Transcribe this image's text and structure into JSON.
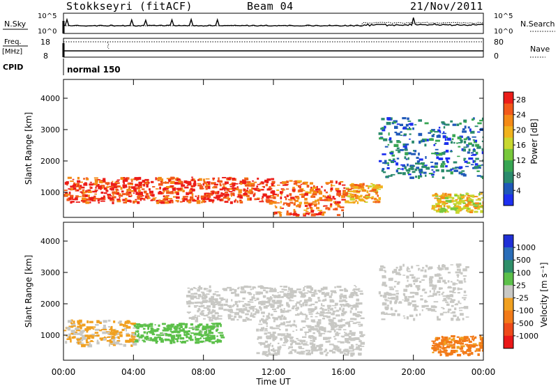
{
  "header": {
    "station": "Stokkseyri (fitACF)",
    "beam": "Beam 04",
    "date": "21/Nov/2011"
  },
  "panels": {
    "nsky_label": "N.Sky",
    "nsky_ticks": [
      "10^5",
      "10^0"
    ],
    "nsearch_label": "N.Search",
    "nsearch_ticks": [
      "10^5",
      "10^0"
    ],
    "freq_label": "Freq.",
    "freq_units": "[MHz]",
    "freq_ticks": [
      "18",
      "8"
    ],
    "nave_label": "Nave",
    "nave_ticks": [
      "80",
      "0"
    ],
    "cpid_label": "CPID",
    "cpid_value": "normal 150"
  },
  "chart_data": [
    {
      "type": "heatmap",
      "title": "",
      "xlabel": "",
      "ylabel": "Slant Range [km]",
      "ylim": [
        200,
        4600
      ],
      "yticks": [
        "1000",
        "2000",
        "3000",
        "4000"
      ],
      "xlim": [
        "00:00",
        "24:00"
      ],
      "colorbar": {
        "label": "Power [dB]",
        "ticks": [
          "4",
          "8",
          "12",
          "16",
          "20",
          "24",
          "28"
        ],
        "colors": [
          "#1d2ff0",
          "#1f58b8",
          "#2a8a6c",
          "#37a552",
          "#78c83b",
          "#c8d72f",
          "#f0b21d",
          "#f48a16",
          "#f2591a",
          "#ec1d19"
        ],
        "range": [
          0,
          30
        ]
      },
      "echo_bands": [
        {
          "t": [
            0,
            12
          ],
          "r": [
            700,
            1500
          ],
          "level": 27
        },
        {
          "t": [
            12,
            16
          ],
          "r": [
            300,
            1400
          ],
          "level": 25
        },
        {
          "t": [
            16,
            18
          ],
          "r": [
            700,
            1300
          ],
          "level": 22
        },
        {
          "t": [
            18,
            24
          ],
          "r": [
            1500,
            3400
          ],
          "level": 6
        },
        {
          "t": [
            21,
            24
          ],
          "r": [
            400,
            1000
          ],
          "level": 18
        }
      ]
    },
    {
      "type": "heatmap",
      "title": "",
      "xlabel": "Time UT",
      "ylabel": "Slant Range [km]",
      "ylim": [
        200,
        4600
      ],
      "yticks": [
        "1000",
        "2000",
        "3000",
        "4000"
      ],
      "xticks": [
        "00:00",
        "04:00",
        "08:00",
        "12:00",
        "16:00",
        "20:00",
        "00:00"
      ],
      "colorbar": {
        "label": "Velocity [m s⁻¹]",
        "ticks": [
          "1000",
          "500",
          "100",
          "25",
          "-25",
          "-100",
          "-500",
          "-1000"
        ],
        "colors": [
          "#1f2fd6",
          "#2a6db8",
          "#2f8f6a",
          "#5cc04a",
          "#c8c8c4",
          "#f0a020",
          "#f27a18",
          "#ee4a1a",
          "#ea1818"
        ],
        "range": [
          -1000,
          1000
        ]
      },
      "echo_bands": [
        {
          "t": [
            0,
            4
          ],
          "r": [
            700,
            1500
          ],
          "level": -150
        },
        {
          "t": [
            4,
            9
          ],
          "r": [
            800,
            1400
          ],
          "level": 200
        },
        {
          "t": [
            7,
            17
          ],
          "r": [
            1500,
            2600
          ],
          "level": 0
        },
        {
          "t": [
            11,
            17
          ],
          "r": [
            400,
            1500
          ],
          "level": 0
        },
        {
          "t": [
            18,
            23
          ],
          "r": [
            1500,
            3300
          ],
          "level": 0
        },
        {
          "t": [
            21,
            24
          ],
          "r": [
            400,
            1000
          ],
          "level": -400
        }
      ]
    }
  ]
}
